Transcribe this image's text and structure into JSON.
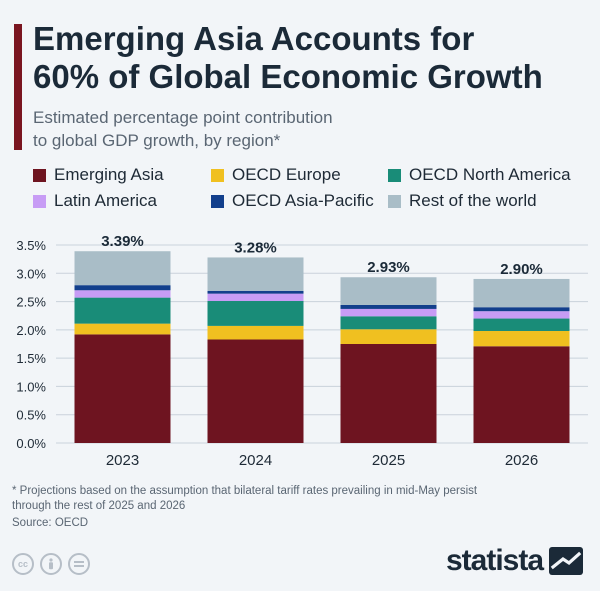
{
  "header": {
    "title_line1": "Emerging Asia Accounts for",
    "title_line2": "60% of Global Economic Growth",
    "subtitle_line1": "Estimated percentage point contribution",
    "subtitle_line2": "to global GDP growth, by region*"
  },
  "legend": [
    {
      "label": "Emerging Asia",
      "color": "#6e1420"
    },
    {
      "label": "OECD Europe",
      "color": "#f0c020"
    },
    {
      "label": "OECD North America",
      "color": "#198c78"
    },
    {
      "label": "Latin America",
      "color": "#c79cf5"
    },
    {
      "label": "OECD Asia-Pacific",
      "color": "#123f8c"
    },
    {
      "label": "Rest of the world",
      "color": "#a9bdc7"
    }
  ],
  "chart_data": {
    "type": "bar",
    "stacked": true,
    "categories": [
      "2023",
      "2024",
      "2025",
      "2026"
    ],
    "totals_labels": [
      "3.39%",
      "3.28%",
      "2.93%",
      "2.90%"
    ],
    "totals": [
      3.39,
      3.28,
      2.93,
      2.9
    ],
    "ylim": [
      0,
      3.5
    ],
    "yticks": [
      "0.0%",
      "0.5%",
      "1.0%",
      "1.5%",
      "2.0%",
      "2.5%",
      "3.0%",
      "3.5%"
    ],
    "series": [
      {
        "name": "Emerging Asia",
        "color": "#6e1420",
        "values": [
          1.92,
          1.83,
          1.75,
          1.71
        ]
      },
      {
        "name": "OECD Europe",
        "color": "#f0c020",
        "values": [
          0.19,
          0.24,
          0.26,
          0.27
        ]
      },
      {
        "name": "OECD North America",
        "color": "#198c78",
        "values": [
          0.46,
          0.44,
          0.23,
          0.22
        ]
      },
      {
        "name": "Latin America",
        "color": "#c79cf5",
        "values": [
          0.13,
          0.13,
          0.13,
          0.13
        ]
      },
      {
        "name": "OECD Asia-Pacific",
        "color": "#123f8c",
        "values": [
          0.09,
          0.05,
          0.07,
          0.07
        ]
      },
      {
        "name": "Rest of the world",
        "color": "#a9bdc7",
        "values": [
          0.6,
          0.59,
          0.49,
          0.5
        ]
      }
    ]
  },
  "footer": {
    "footnote_line1": "* Projections based on the assumption that bilateral tariff rates prevailing in mid-May persist",
    "footnote_line2": "through the rest of 2025 and 2026",
    "source": "Source: OECD",
    "brand": "statista"
  }
}
